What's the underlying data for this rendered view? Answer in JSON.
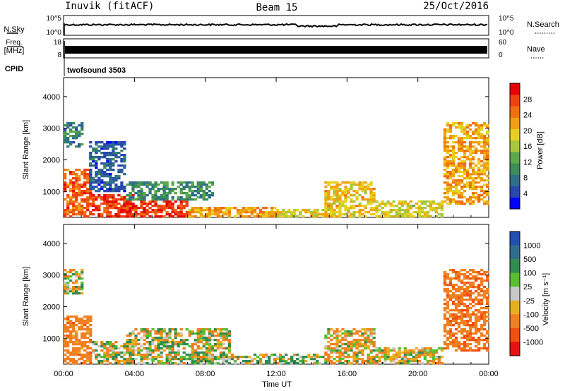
{
  "header": {
    "station": "Inuvik (fitACF)",
    "beam": "Beam 15",
    "date": "25/Oct/2016"
  },
  "panels": {
    "nsky": {
      "label": "N.Sky",
      "tick_top": "10^5",
      "tick_bottom": "10^0"
    },
    "nsearch": {
      "label": "N.Search",
      "tick_top": "10^5",
      "tick_bottom": "10^0"
    },
    "freq": {
      "label_line1": "Freq.",
      "label_line2": "[MHz]",
      "tick_top": "18",
      "tick_bottom": "8"
    },
    "nave": {
      "label": "Nave",
      "tick_top": "60",
      "tick_bottom": "0"
    },
    "cpid": {
      "label": "CPID",
      "value": "twofsound 3503"
    }
  },
  "axes": {
    "ylabel": "Slant Range [km]",
    "yticks": [
      "4000",
      "3000",
      "2000",
      "1000"
    ],
    "xlabel": "Time UT",
    "xticks": [
      "00:00",
      "04:00",
      "08:00",
      "12:00",
      "16:00",
      "20:00",
      "00:00"
    ]
  },
  "power_colorbar": {
    "label": "Power [dB]",
    "ticks": [
      "28",
      "24",
      "20",
      "16",
      "12",
      "8",
      "4"
    ],
    "colors": [
      "#0000ff",
      "#2848b0",
      "#2e6e88",
      "#3c8c58",
      "#5aa84a",
      "#a8c83c",
      "#e8d020",
      "#f0a010",
      "#f07010",
      "#f04010",
      "#e80000"
    ]
  },
  "velocity_colorbar": {
    "label": "Velocity [m s⁻¹]",
    "ticks": [
      "1000",
      "500",
      "100",
      "25",
      "-25",
      "-100",
      "-500",
      "-1000"
    ],
    "colors": [
      "#2050b0",
      "#2e6e8c",
      "#2e8c50",
      "#58c030",
      "#c8c8c8",
      "#e8b020",
      "#f08020",
      "#f05010",
      "#e81010"
    ]
  },
  "chart_data": [
    {
      "type": "heatmap",
      "title": "Power",
      "xlabel": "Time UT",
      "ylabel": "Slant Range [km]",
      "xlim": [
        0,
        24
      ],
      "ylim": [
        180,
        4600
      ],
      "zlabel": "Power [dB]",
      "zlim": [
        0,
        32
      ],
      "blobs": [
        {
          "t": [
            0.0,
            1.6
          ],
          "r": [
            180,
            1700
          ],
          "v": 26
        },
        {
          "t": [
            0.0,
            1.2
          ],
          "r": [
            2400,
            3200
          ],
          "v": 9
        },
        {
          "t": [
            1.6,
            4.0
          ],
          "r": [
            180,
            900
          ],
          "v": 28
        },
        {
          "t": [
            1.5,
            3.5
          ],
          "r": [
            1000,
            2600
          ],
          "v": 6
        },
        {
          "t": [
            3.5,
            7.0
          ],
          "r": [
            180,
            700
          ],
          "v": 28
        },
        {
          "t": [
            3.5,
            8.5
          ],
          "r": [
            700,
            1300
          ],
          "v": 10
        },
        {
          "t": [
            7.0,
            12.0
          ],
          "r": [
            180,
            500
          ],
          "v": 22
        },
        {
          "t": [
            12.0,
            14.8
          ],
          "r": [
            180,
            450
          ],
          "v": 18
        },
        {
          "t": [
            14.8,
            17.6
          ],
          "r": [
            180,
            1300
          ],
          "v": 20
        },
        {
          "t": [
            17.6,
            21.5
          ],
          "r": [
            180,
            700
          ],
          "v": 18
        },
        {
          "t": [
            21.5,
            24.0
          ],
          "r": [
            600,
            3200
          ],
          "v": 22
        }
      ]
    },
    {
      "type": "heatmap",
      "title": "Velocity",
      "xlabel": "Time UT",
      "ylabel": "Slant Range [km]",
      "xlim": [
        0,
        24
      ],
      "ylim": [
        180,
        4600
      ],
      "zlabel": "Velocity [m s⁻¹]",
      "zlim": [
        -1000,
        1000
      ],
      "blobs": [
        {
          "t": [
            0.0,
            1.6
          ],
          "r": [
            180,
            1700
          ],
          "v": -300
        },
        {
          "t": [
            0.0,
            1.2
          ],
          "r": [
            2400,
            3200
          ],
          "v": 0
        },
        {
          "t": [
            1.6,
            4.0
          ],
          "r": [
            180,
            900
          ],
          "v": 0
        },
        {
          "t": [
            3.5,
            9.5
          ],
          "r": [
            180,
            1300
          ],
          "v": 0
        },
        {
          "t": [
            7.0,
            14.8
          ],
          "r": [
            180,
            500
          ],
          "v": 60
        },
        {
          "t": [
            14.8,
            17.6
          ],
          "r": [
            180,
            1300
          ],
          "v": -80
        },
        {
          "t": [
            17.6,
            21.5
          ],
          "r": [
            180,
            700
          ],
          "v": -60
        },
        {
          "t": [
            21.5,
            24.0
          ],
          "r": [
            600,
            3200
          ],
          "v": -400
        }
      ]
    }
  ]
}
